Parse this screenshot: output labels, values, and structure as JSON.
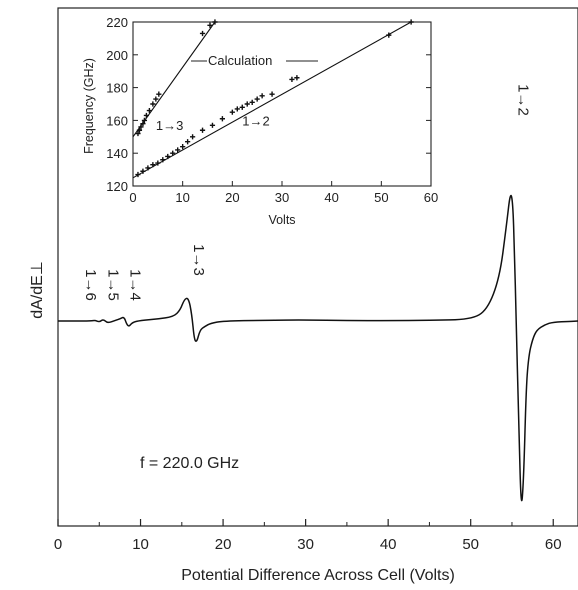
{
  "chart_data": [
    {
      "type": "line",
      "title": "",
      "xlabel": "Potential Difference Across Cell (Volts)",
      "ylabel": "dA/dE⊥",
      "xlim": [
        0,
        63
      ],
      "xticks": [
        0,
        10,
        20,
        30,
        40,
        50,
        60
      ],
      "xtick_labels": [
        "0",
        "10",
        "20",
        "30",
        "40",
        "50",
        "60"
      ],
      "y_scale": "arbitrary units, no tick labels",
      "grid": false,
      "annotation": "f = 220.0 GHz",
      "trace": {
        "x": [
          0,
          2,
          4,
          4.5,
          5,
          5.5,
          6,
          7,
          7.5,
          8,
          8.3,
          8.6,
          9,
          10,
          12,
          14,
          14.8,
          15.3,
          15.8,
          16.2,
          16.5,
          16.8,
          17.2,
          17.8,
          18.5,
          20,
          25,
          30,
          35,
          40,
          45,
          50,
          52,
          53.5,
          54.3,
          54.8,
          55.1,
          55.3,
          55.5,
          55.8,
          56.1,
          56.4,
          56.7,
          57,
          57.5,
          58,
          59,
          60,
          62,
          63
        ],
        "y": [
          0,
          0,
          0,
          0.2,
          -0.3,
          0.5,
          -0.6,
          0.2,
          0.6,
          1.2,
          -0.8,
          -1.6,
          -0.4,
          0.2,
          0.5,
          1.2,
          3,
          6,
          6.5,
          2,
          -5,
          -6,
          -2.5,
          -1.5,
          -0.6,
          0,
          0.2,
          0.3,
          0.1,
          0.1,
          0.2,
          0.4,
          3,
          12,
          26,
          36,
          33,
          20,
          0,
          -25,
          -53,
          -45,
          -20,
          -10,
          -5,
          -2.5,
          -1,
          -0.3,
          -0.1,
          0
        ]
      },
      "transition_labels": [
        {
          "label": "1→6",
          "x": 2.8
        },
        {
          "label": "1→5",
          "x": 5.5
        },
        {
          "label": "1→4",
          "x": 8.2
        },
        {
          "label": "1→3",
          "x": 15.9
        },
        {
          "label": "1→2",
          "x": 55.2
        }
      ]
    },
    {
      "type": "scatter",
      "title": "",
      "xlabel": "Volts",
      "ylabel": "Frequency (GHz)",
      "xlim": [
        0,
        60
      ],
      "ylim": [
        120,
        220
      ],
      "xticks": [
        0,
        10,
        20,
        30,
        40,
        50,
        60
      ],
      "xtick_labels": [
        "0",
        "10",
        "20",
        "30",
        "40",
        "50",
        "60"
      ],
      "yticks": [
        120,
        140,
        160,
        180,
        200,
        220
      ],
      "ytick_labels": [
        "120",
        "140",
        "160",
        "180",
        "200",
        "220"
      ],
      "grid": false,
      "series": [
        {
          "name": "1→3",
          "points": [
            [
              1,
              152
            ],
            [
              1.3,
              154
            ],
            [
              1.6,
              156
            ],
            [
              2,
              158
            ],
            [
              2.3,
              160
            ],
            [
              2.7,
              163
            ],
            [
              3.3,
              166
            ],
            [
              4,
              170
            ],
            [
              4.6,
              173
            ],
            [
              5.2,
              176
            ],
            [
              14,
              213
            ],
            [
              15.5,
              218
            ],
            [
              16.5,
              220
            ]
          ],
          "line": [
            [
              0,
              150
            ],
            [
              16.5,
              220
            ]
          ]
        },
        {
          "name": "1→2",
          "points": [
            [
              1,
              127
            ],
            [
              2,
              129
            ],
            [
              3,
              131
            ],
            [
              4,
              133
            ],
            [
              5,
              134
            ],
            [
              6,
              136
            ],
            [
              7,
              138
            ],
            [
              8,
              140
            ],
            [
              9,
              142
            ],
            [
              10,
              144
            ],
            [
              11,
              147
            ],
            [
              12,
              150
            ],
            [
              14,
              154
            ],
            [
              16,
              157
            ],
            [
              18,
              161
            ],
            [
              20,
              165
            ],
            [
              21,
              167
            ],
            [
              22,
              168
            ],
            [
              23,
              170
            ],
            [
              24,
              171
            ],
            [
              25,
              173
            ],
            [
              26,
              175
            ],
            [
              28,
              176
            ],
            [
              32,
              185
            ],
            [
              33,
              186
            ],
            [
              51.5,
              212
            ],
            [
              56,
              220
            ]
          ],
          "line": [
            [
              0,
              125
            ],
            [
              56,
              220
            ]
          ]
        }
      ],
      "annotation": "Calculation"
    }
  ]
}
